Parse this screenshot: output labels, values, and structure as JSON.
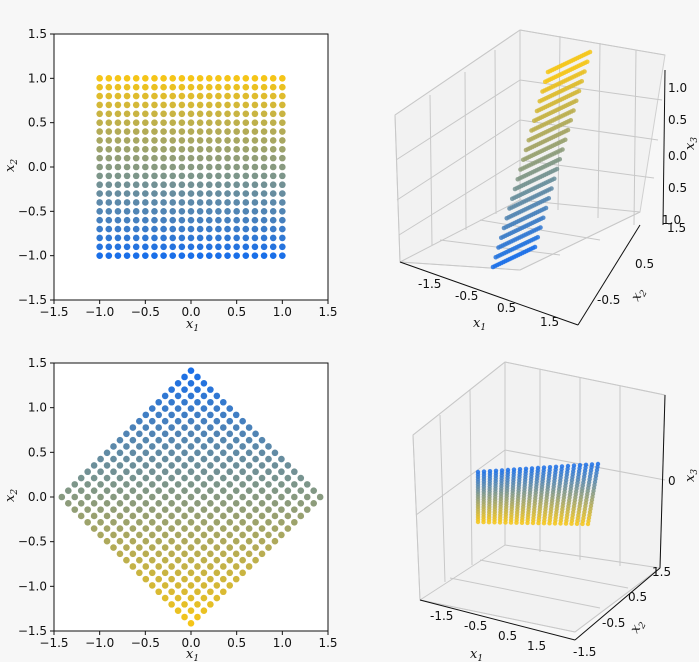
{
  "colors": {
    "low": "#1a6fe8",
    "high": "#f5c518",
    "background": "#f7f7f7"
  },
  "chart_data": [
    {
      "id": "top-left",
      "type": "scatter",
      "xlabel": "x1",
      "ylabel": "x2",
      "xlim": [
        -1.5,
        1.5
      ],
      "ylim": [
        -1.5,
        1.5
      ],
      "xticks": [
        "−1.5",
        "−1.0",
        "−0.5",
        "0.0",
        "0.5",
        "1.0",
        "1.5"
      ],
      "yticks": [
        "1.5",
        "1.0",
        "0.5",
        "0.0",
        "−0.5",
        "−1.0",
        "−1.5"
      ],
      "grid": {
        "x_min": -1.0,
        "x_max": 1.0,
        "y_min": -1.0,
        "y_max": 1.0,
        "n": 21
      },
      "color_by": "x2",
      "rotation_deg": 0
    },
    {
      "id": "bottom-left",
      "type": "scatter",
      "xlabel": "x1",
      "ylabel": "x2",
      "xlim": [
        -1.5,
        1.5
      ],
      "ylim": [
        -1.5,
        1.5
      ],
      "xticks": [
        "−1.5",
        "−1.0",
        "−0.5",
        "0.0",
        "0.5",
        "1.0",
        "1.5"
      ],
      "yticks": [
        "1.5",
        "1.0",
        "0.5",
        "0.0",
        "−0.5",
        "−1.0",
        "−1.5"
      ],
      "grid": {
        "x_min": -1.0,
        "x_max": 1.0,
        "y_min": -1.0,
        "y_max": 1.0,
        "n": 21
      },
      "color_by": "x2",
      "rotation_deg": 45
    },
    {
      "id": "top-right",
      "type": "scatter3d",
      "xlabel": "x1",
      "ylabel": "x2",
      "zlabel": "x3",
      "xticks": [
        "-1.5",
        "-0.5",
        "0.5",
        "1.5"
      ],
      "yticks": [
        "-0.5",
        "0.5",
        "1.5"
      ],
      "zticks": [
        "1.0",
        "0.5",
        "0.0",
        "0.5",
        "1.0"
      ],
      "surface": "tilted plane"
    },
    {
      "id": "bottom-right",
      "type": "scatter3d",
      "xlabel": "x1",
      "ylabel": "x2",
      "zlabel": "x3",
      "xticks": [
        "-1.5",
        "-0.5",
        "0.5",
        "1.5"
      ],
      "yticks": [
        "-1.5",
        "-0.5",
        "0.5",
        "1.5"
      ],
      "zticks": [
        "0"
      ],
      "surface": "flat plane"
    }
  ]
}
